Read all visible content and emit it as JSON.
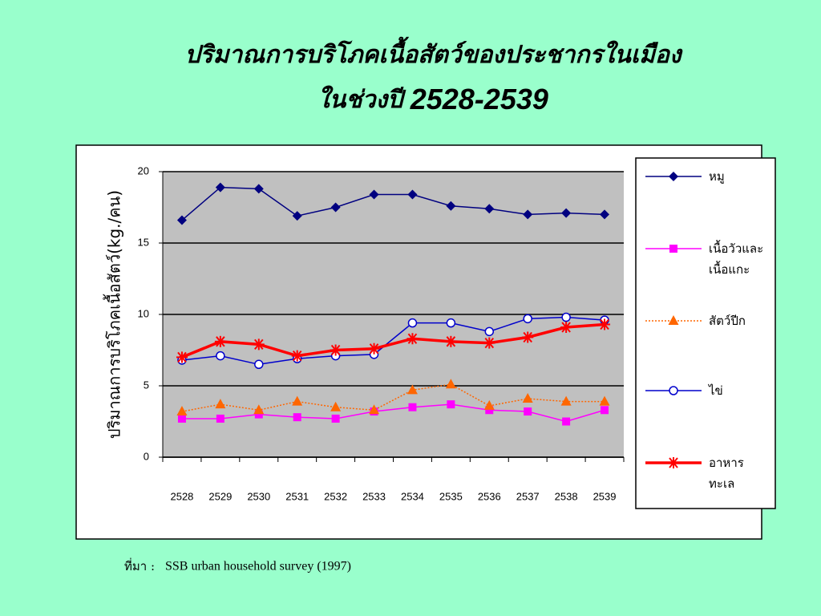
{
  "chart_data": {
    "type": "line",
    "title": [
      "ปริมาณการบริโภคเนื้อสัตว์ของประชากรในเมือง",
      "ในช่วงปี",
      "2528-2539"
    ],
    "y_label": "ปริมาณการบริโภคเนื้อสัตว์(kg./คน)",
    "source_label": "ที่มา :",
    "source": "SSB urban household survey (1997)",
    "categories": [
      "2528",
      "2529",
      "2530",
      "2531",
      "2532",
      "2533",
      "2534",
      "2535",
      "2536",
      "2537",
      "2538",
      "2539"
    ],
    "ylim": [
      0,
      20
    ],
    "yticks": [
      0,
      5,
      10,
      15,
      20
    ],
    "grid": true,
    "series": [
      {
        "name": "หมู",
        "color": "#000080",
        "marker": "diamond",
        "line_style": "solid",
        "line_width": 1.5,
        "values": [
          16.6,
          18.9,
          18.8,
          16.9,
          17.5,
          18.4,
          18.4,
          17.6,
          17.4,
          17.0,
          17.1,
          17.0
        ]
      },
      {
        "name": "เนื้อวัวและเนื้อแกะ",
        "color": "#ff00ff",
        "marker": "square",
        "line_style": "solid",
        "line_width": 1.5,
        "values": [
          2.7,
          2.7,
          3.0,
          2.8,
          2.7,
          3.2,
          3.5,
          3.7,
          3.3,
          3.2,
          2.5,
          3.3
        ]
      },
      {
        "name": "สัตว์ปีก",
        "color": "#ff6600",
        "marker": "triangle",
        "line_style": "dotted",
        "line_width": 1.5,
        "values": [
          3.2,
          3.7,
          3.3,
          3.9,
          3.5,
          3.3,
          4.7,
          5.1,
          3.6,
          4.1,
          3.9,
          3.9
        ]
      },
      {
        "name": "ไข่",
        "color": "#0000cc",
        "marker": "circle",
        "line_style": "solid",
        "line_width": 1.5,
        "values": [
          6.8,
          7.1,
          6.5,
          6.9,
          7.1,
          7.2,
          9.4,
          9.4,
          8.8,
          9.7,
          9.8,
          9.6
        ]
      },
      {
        "name": "อาหารทะเล",
        "color": "#ff0000",
        "marker": "star",
        "line_style": "solid",
        "line_width": 3.5,
        "values": [
          7.0,
          8.1,
          7.9,
          7.1,
          7.5,
          7.6,
          8.3,
          8.1,
          8.0,
          8.4,
          9.1,
          9.3
        ]
      }
    ]
  }
}
